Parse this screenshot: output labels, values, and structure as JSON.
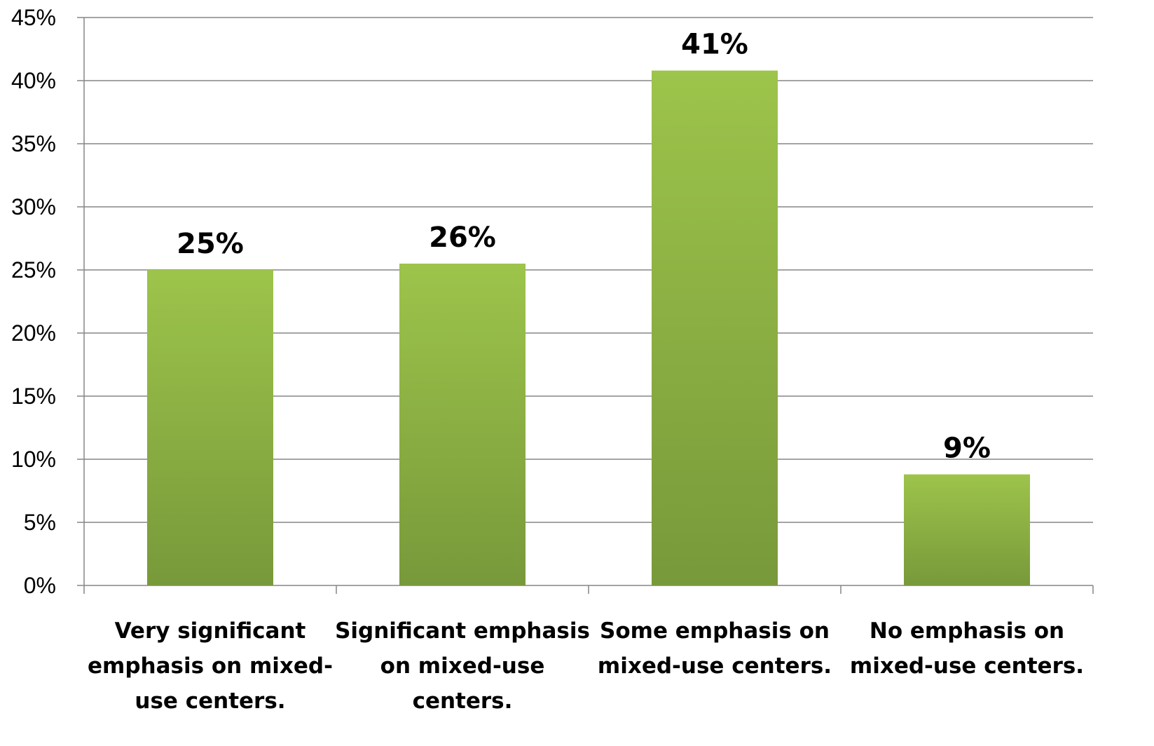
{
  "chart_data": {
    "type": "bar",
    "categories": [
      [
        "Very significant",
        "emphasis on mixed-",
        "use centers."
      ],
      [
        "Significant emphasis",
        "on mixed-use",
        "centers."
      ],
      [
        "Some emphasis on",
        "mixed-use centers."
      ],
      [
        "No emphasis on",
        "mixed-use centers."
      ]
    ],
    "values": [
      25,
      25.5,
      40.8,
      8.8
    ],
    "data_labels": [
      "25%",
      "26%",
      "41%",
      "9%"
    ],
    "y_ticks": [
      "0%",
      "5%",
      "10%",
      "15%",
      "20%",
      "25%",
      "30%",
      "35%",
      "40%",
      "45%"
    ],
    "ylim": [
      0,
      45
    ],
    "grid": true,
    "legend": "none",
    "colors": {
      "bar_top": "#9dc44b",
      "bar_bottom": "#78993a",
      "grid": "#868686",
      "axis": "#868686"
    }
  }
}
